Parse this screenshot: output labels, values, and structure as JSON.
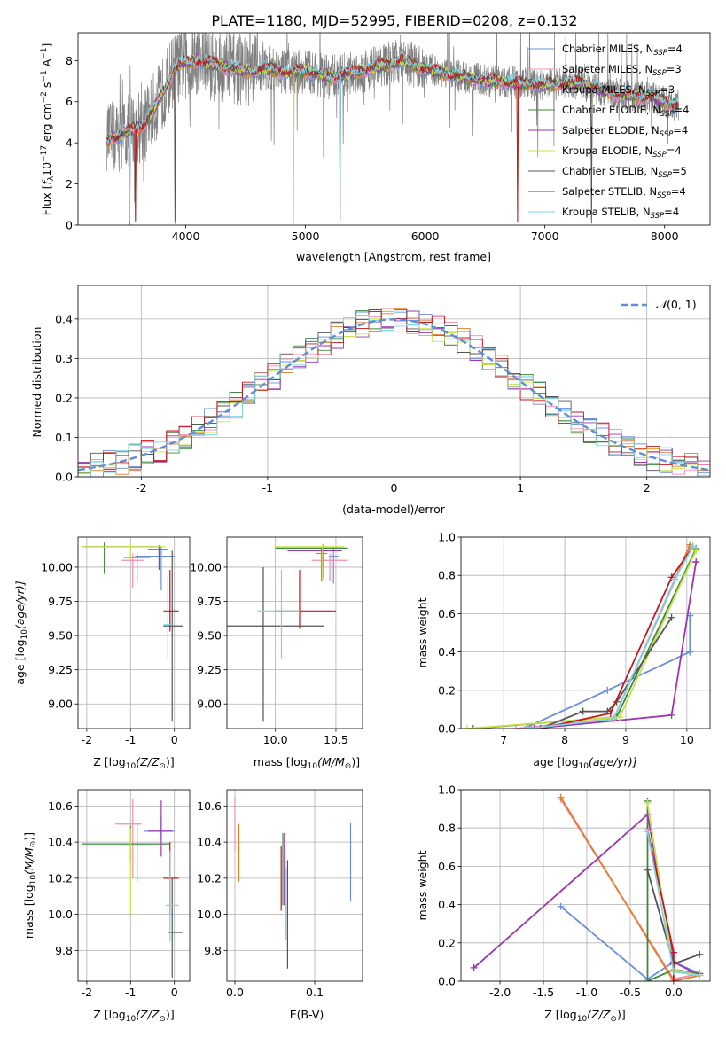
{
  "figure": {
    "title": "PLATE=1180, MJD=52995, FIBERID=0208, z=0.132",
    "models": [
      {
        "name": "Chabrier MILES",
        "nssp": "4",
        "color": "#6a8fd8"
      },
      {
        "name": "Salpeter MILES",
        "nssp": "3",
        "color": "#f08cb4"
      },
      {
        "name": "Kroupa MILES",
        "nssp": "3",
        "color": "#e07f2a"
      },
      {
        "name": "Chabrier ELODIE",
        "nssp": "4",
        "color": "#3d8a3d"
      },
      {
        "name": "Salpeter ELODIE",
        "nssp": "4",
        "color": "#9b35b0"
      },
      {
        "name": "Kroupa ELODIE",
        "nssp": "4",
        "color": "#c8e04a"
      },
      {
        "name": "Chabrier STELIB",
        "nssp": "5",
        "color": "#555555"
      },
      {
        "name": "Salpeter STELIB",
        "nssp": "4",
        "color": "#c4161c"
      },
      {
        "name": "Kroupa STELIB",
        "nssp": "4",
        "color": "#7dd4e0"
      }
    ],
    "legend_suffix": "N",
    "legend_sub": "SSP",
    "legend_eq": "=",
    "data_color": "#808080"
  },
  "chart_data": [
    {
      "id": "spectrum",
      "type": "line",
      "xlabel": "wavelength [Angstrom, rest frame]",
      "ylabel_parts": [
        "Flux [",
        "f",
        "λ",
        "10",
        "−17",
        " erg cm",
        "−2",
        " s",
        "−1",
        " A",
        "−1",
        "]"
      ],
      "xlim": [
        3100,
        8380
      ],
      "ylim": [
        0,
        9.35
      ],
      "xticks": [
        4000,
        5000,
        6000,
        7000,
        8000
      ],
      "yticks": [
        0,
        2,
        4,
        6,
        8
      ],
      "grid": false,
      "legend": "right",
      "data_range": [
        3340,
        8120
      ],
      "continuum_knots": [
        [
          3340,
          4.1
        ],
        [
          3500,
          4.5
        ],
        [
          3650,
          4.9
        ],
        [
          3800,
          6.3
        ],
        [
          3900,
          7.6
        ],
        [
          4000,
          7.9
        ],
        [
          4100,
          8.0
        ],
        [
          4300,
          7.7
        ],
        [
          4500,
          7.5
        ],
        [
          4700,
          7.6
        ],
        [
          4860,
          7.4
        ],
        [
          5000,
          7.5
        ],
        [
          5200,
          7.2
        ],
        [
          5400,
          7.4
        ],
        [
          5600,
          7.7
        ],
        [
          5800,
          8.0
        ],
        [
          6000,
          7.6
        ],
        [
          6300,
          7.2
        ],
        [
          6560,
          7.0
        ],
        [
          6800,
          6.9
        ],
        [
          7000,
          6.8
        ],
        [
          7300,
          6.9
        ],
        [
          7500,
          6.5
        ],
        [
          7700,
          6.3
        ],
        [
          7900,
          6.2
        ],
        [
          8120,
          5.8
        ]
      ]
    },
    {
      "id": "residuals",
      "type": "histogram",
      "xlabel": "(data-model)/error",
      "ylabel": "Normed distribution",
      "xlim": [
        -2.5,
        2.5
      ],
      "ylim": [
        0,
        0.485
      ],
      "xticks": [
        -2,
        -1,
        0,
        1,
        2
      ],
      "yticks": [
        0,
        0.1,
        0.2,
        0.3,
        0.4
      ],
      "grid": true,
      "legend": "top-right",
      "reference": {
        "label_parts": [
          "𝒩",
          "(0, 1)"
        ],
        "mu": 0,
        "sigma": 1,
        "color": "#5b8fd6"
      },
      "bin_edges_start": -2.5,
      "bin_width": 0.1,
      "bins": 50
    },
    {
      "id": "age_vs_Z",
      "type": "errorbar",
      "xlabel_parts": [
        "Z [log",
        "10",
        "(Z/Z",
        "⊙",
        ")]"
      ],
      "ylabel_parts": [
        "age  [log",
        "10",
        "(age/yr)]"
      ],
      "xlim": [
        -2.2,
        0.35
      ],
      "ylim": [
        8.82,
        10.22
      ],
      "xticks": [
        -2,
        -1,
        0
      ],
      "yticks": [
        9.0,
        9.25,
        9.5,
        9.75,
        10.0
      ],
      "grid": true,
      "points": [
        {
          "m": 0,
          "x": -0.3,
          "y": 10.08,
          "xerr": [
            0.6,
            0.3
          ],
          "yerr": [
            0.25,
            0.07
          ]
        },
        {
          "m": 1,
          "x": -0.95,
          "y": 10.05,
          "xerr": [
            0.25,
            0.25
          ],
          "yerr": [
            0.2,
            0.05
          ]
        },
        {
          "m": 2,
          "x": -0.85,
          "y": 10.07,
          "xerr": [
            0.3,
            0.3
          ],
          "yerr": [
            0.18,
            0.04
          ]
        },
        {
          "m": 3,
          "x": -1.6,
          "y": 10.15,
          "xerr": [
            0.5,
            1.3
          ],
          "yerr": [
            0.2,
            0.03
          ]
        },
        {
          "m": 4,
          "x": -0.35,
          "y": 10.13,
          "xerr": [
            0.25,
            0.2
          ],
          "yerr": [
            0.15,
            0.03
          ]
        },
        {
          "m": 5,
          "x": -1.0,
          "y": 10.15,
          "xerr": [
            1.1,
            0.8
          ],
          "yerr": [
            0.1,
            0.02
          ]
        },
        {
          "m": 6,
          "x": -0.05,
          "y": 9.57,
          "xerr": [
            0.2,
            0.25
          ],
          "yerr": [
            0.7,
            0.55
          ]
        },
        {
          "m": 7,
          "x": -0.1,
          "y": 9.68,
          "xerr": [
            0.15,
            0.2
          ],
          "yerr": [
            0.15,
            0.3
          ]
        },
        {
          "m": 8,
          "x": -0.15,
          "y": 9.58,
          "xerr": [
            0.1,
            0.1
          ],
          "yerr": [
            0.25,
            0.35
          ]
        }
      ]
    },
    {
      "id": "age_vs_mass",
      "type": "errorbar",
      "xlabel_parts": [
        "mass [log",
        "10",
        "(M/M",
        "⊙",
        ")]"
      ],
      "ylabel_parts": [],
      "xlim": [
        9.6,
        10.72
      ],
      "ylim": [
        8.82,
        10.22
      ],
      "xticks": [
        10.0,
        10.5
      ],
      "yticks": [
        9.0,
        9.25,
        9.5,
        9.75,
        10.0
      ],
      "grid": true,
      "points": [
        {
          "m": 0,
          "x": 10.48,
          "y": 10.08,
          "xerr": [
            0.04,
            0.04
          ],
          "yerr": [
            0.2,
            0.07
          ]
        },
        {
          "m": 1,
          "x": 10.45,
          "y": 10.05,
          "xerr": [
            0.15,
            0.15
          ],
          "yerr": [
            0.15,
            0.05
          ]
        },
        {
          "m": 2,
          "x": 10.38,
          "y": 10.1,
          "xerr": [
            0.05,
            0.05
          ],
          "yerr": [
            0.2,
            0.04
          ]
        },
        {
          "m": 3,
          "x": 10.4,
          "y": 10.14,
          "xerr": [
            0.4,
            0.2
          ],
          "yerr": [
            0.15,
            0.03
          ]
        },
        {
          "m": 4,
          "x": 10.4,
          "y": 10.12,
          "xerr": [
            0.3,
            0.15
          ],
          "yerr": [
            0.2,
            0.03
          ]
        },
        {
          "m": 5,
          "x": 10.39,
          "y": 10.15,
          "xerr": [
            0.4,
            0.18
          ],
          "yerr": [
            0.25,
            0.02
          ]
        },
        {
          "m": 6,
          "x": 9.9,
          "y": 9.57,
          "xerr": [
            0.3,
            0.5
          ],
          "yerr": [
            0.7,
            0.43
          ]
        },
        {
          "m": 7,
          "x": 10.2,
          "y": 9.68,
          "xerr": [
            0.2,
            0.3
          ],
          "yerr": [
            0.13,
            0.3
          ]
        },
        {
          "m": 8,
          "x": 10.05,
          "y": 9.68,
          "xerr": [
            0.2,
            0.15
          ],
          "yerr": [
            0.35,
            0.3
          ]
        }
      ]
    },
    {
      "id": "mass_weight_vs_age",
      "type": "line",
      "xlabel_parts": [
        "age  [log",
        "10",
        "(age/yr)]"
      ],
      "ylabel": "mass weight",
      "xlim": [
        6.3,
        10.38
      ],
      "ylim": [
        0,
        1.0
      ],
      "xticks": [
        7,
        8,
        9,
        10
      ],
      "yticks": [
        0,
        0.2,
        0.4,
        0.6,
        0.8,
        1.0
      ],
      "grid": true,
      "series": [
        {
          "m": 0,
          "x": [
            7.4,
            8.7,
            10.05,
            10.05
          ],
          "y": [
            0.01,
            0.2,
            0.4,
            0.59
          ]
        },
        {
          "m": 1,
          "x": [
            7.2,
            8.8,
            10.05
          ],
          "y": [
            0.0,
            0.05,
            0.95
          ]
        },
        {
          "m": 2,
          "x": [
            7.5,
            8.8,
            10.05
          ],
          "y": [
            0.0,
            0.05,
            0.96
          ]
        },
        {
          "m": 3,
          "x": [
            6.5,
            8.85,
            10.15
          ],
          "y": [
            0.0,
            0.06,
            0.94
          ]
        },
        {
          "m": 4,
          "x": [
            7.5,
            9.75,
            10.15,
            10.15
          ],
          "y": [
            0.0,
            0.07,
            0.87,
            0.87
          ]
        },
        {
          "m": 5,
          "x": [
            6.4,
            8.9,
            10.15
          ],
          "y": [
            0.0,
            0.06,
            0.93
          ]
        },
        {
          "m": 6,
          "x": [
            7.6,
            8.3,
            8.7,
            8.85,
            9.75
          ],
          "y": [
            0.0,
            0.09,
            0.09,
            0.14,
            0.58
          ]
        },
        {
          "m": 7,
          "x": [
            7.6,
            8.75,
            9.75,
            10.1
          ],
          "y": [
            0.0,
            0.08,
            0.79,
            0.95
          ]
        },
        {
          "m": 8,
          "x": [
            7.4,
            8.8,
            9.8,
            10.1
          ],
          "y": [
            0.0,
            0.05,
            0.78,
            0.95
          ]
        }
      ]
    },
    {
      "id": "mass_vs_Z",
      "type": "errorbar",
      "xlabel_parts": [
        "Z [log",
        "10",
        "(Z/Z",
        "⊙",
        ")]"
      ],
      "ylabel_parts": [
        "mass [log",
        "10",
        "(M/M",
        "⊙",
        ")]"
      ],
      "xlim": [
        -2.2,
        0.35
      ],
      "ylim": [
        9.63,
        10.69
      ],
      "xticks": [
        -2,
        -1,
        0
      ],
      "yticks": [
        9.8,
        10.0,
        10.2,
        10.4,
        10.6
      ],
      "grid": true,
      "points": [
        {
          "m": 0,
          "x": -0.3,
          "y": 10.46,
          "xerr": [
            0.4,
            0.3
          ],
          "yerr": [
            0.05,
            0.08
          ]
        },
        {
          "m": 1,
          "x": -0.95,
          "y": 10.5,
          "xerr": [
            0.4,
            0.2
          ],
          "yerr": [
            0.3,
            0.14
          ]
        },
        {
          "m": 2,
          "x": -0.85,
          "y": 10.38,
          "xerr": [
            0.3,
            0.3
          ],
          "yerr": [
            0.2,
            0.12
          ]
        },
        {
          "m": 3,
          "x": -1.0,
          "y": 10.39,
          "xerr": [
            1.1,
            0.9
          ],
          "yerr": [
            0.1,
            0.1
          ]
        },
        {
          "m": 4,
          "x": -0.3,
          "y": 10.46,
          "xerr": [
            0.3,
            0.25
          ],
          "yerr": [
            0.14,
            0.17
          ]
        },
        {
          "m": 5,
          "x": -1.0,
          "y": 10.38,
          "xerr": [
            1.1,
            0.8
          ],
          "yerr": [
            0.38,
            0.1
          ]
        },
        {
          "m": 6,
          "x": -0.05,
          "y": 9.9,
          "xerr": [
            0.1,
            0.25
          ],
          "yerr": [
            0.25,
            0.3
          ]
        },
        {
          "m": 7,
          "x": -0.1,
          "y": 10.2,
          "xerr": [
            0.15,
            0.2
          ],
          "yerr": [
            0.2,
            0.2
          ]
        },
        {
          "m": 8,
          "x": -0.1,
          "y": 10.05,
          "xerr": [
            0.1,
            0.2
          ],
          "yerr": [
            0.2,
            0.3
          ]
        }
      ]
    },
    {
      "id": "mass_vs_ebv",
      "type": "errorbar",
      "xlabel": "E(B-V)",
      "ylabel_parts": [],
      "xlim": [
        -0.01,
        0.16
      ],
      "ylim": [
        9.63,
        10.69
      ],
      "xticks": [
        0.0,
        0.1
      ],
      "yticks": [
        9.8,
        10.0,
        10.2,
        10.4,
        10.6
      ],
      "grid": true,
      "points": [
        {
          "m": 0,
          "x": 0.145,
          "y": 10.29,
          "xerr": [
            0,
            0
          ],
          "yerr": [
            0.22,
            0.22
          ]
        },
        {
          "m": 1,
          "x": 0.0,
          "y": 10.5,
          "xerr": [
            0,
            0
          ],
          "yerr": [
            0.15,
            0.15
          ]
        },
        {
          "m": 2,
          "x": 0.005,
          "y": 10.34,
          "xerr": [
            0,
            0
          ],
          "yerr": [
            0.16,
            0.16
          ]
        },
        {
          "m": 3,
          "x": 0.06,
          "y": 10.25,
          "xerr": [
            0,
            0
          ],
          "yerr": [
            0.2,
            0.2
          ]
        },
        {
          "m": 4,
          "x": 0.062,
          "y": 10.25,
          "xerr": [
            0,
            0
          ],
          "yerr": [
            0.2,
            0.2
          ]
        },
        {
          "m": 5,
          "x": 0.063,
          "y": 10.2,
          "xerr": [
            0,
            0
          ],
          "yerr": [
            0.18,
            0.18
          ]
        },
        {
          "m": 6,
          "x": 0.066,
          "y": 10.0,
          "xerr": [
            0,
            0
          ],
          "yerr": [
            0.3,
            0.3
          ]
        },
        {
          "m": 7,
          "x": 0.058,
          "y": 10.2,
          "xerr": [
            0,
            0
          ],
          "yerr": [
            0.18,
            0.18
          ]
        },
        {
          "m": 8,
          "x": 0.064,
          "y": 10.06,
          "xerr": [
            0,
            0
          ],
          "yerr": [
            0.2,
            0.2
          ]
        }
      ]
    },
    {
      "id": "mass_weight_vs_Z",
      "type": "line",
      "xlabel_parts": [
        "Z [log",
        "10",
        "(Z/Z",
        "⊙",
        ")]"
      ],
      "ylabel": "mass weight",
      "xlim": [
        -2.45,
        0.42
      ],
      "ylim": [
        0,
        1.0
      ],
      "xticks": [
        -2.0,
        -1.5,
        -1.0,
        -0.5,
        0.0
      ],
      "yticks": [
        0,
        0.2,
        0.4,
        0.6,
        0.8,
        1.0
      ],
      "grid": true,
      "series": [
        {
          "m": 0,
          "x": [
            -1.3,
            -0.3,
            0.0,
            0.3
          ],
          "y": [
            0.39,
            0.01,
            0.1,
            0.04
          ]
        },
        {
          "m": 1,
          "x": [
            -1.3,
            0.0,
            0.3
          ],
          "y": [
            0.95,
            0.01,
            0.04
          ]
        },
        {
          "m": 2,
          "x": [
            -1.3,
            0.0,
            0.3
          ],
          "y": [
            0.96,
            0.0,
            0.03
          ]
        },
        {
          "m": 3,
          "x": [
            -0.3,
            -0.3,
            0.0,
            0.3
          ],
          "y": [
            0.94,
            0.0,
            0.06,
            0.04
          ]
        },
        {
          "m": 4,
          "x": [
            -2.3,
            -0.3,
            0.0,
            0.3
          ],
          "y": [
            0.07,
            0.87,
            0.1,
            0.03
          ]
        },
        {
          "m": 5,
          "x": [
            -0.3,
            0.0,
            0.3
          ],
          "y": [
            0.93,
            0.06,
            0.03
          ]
        },
        {
          "m": 6,
          "x": [
            -0.3,
            0.0,
            0.3
          ],
          "y": [
            0.58,
            0.09,
            0.14
          ]
        },
        {
          "m": 7,
          "x": [
            -0.3,
            0.0,
            0.0
          ],
          "y": [
            0.79,
            0.15,
            0.0
          ]
        },
        {
          "m": 8,
          "x": [
            -0.3,
            0.0,
            0.3
          ],
          "y": [
            0.78,
            0.05,
            0.03
          ]
        }
      ]
    }
  ]
}
